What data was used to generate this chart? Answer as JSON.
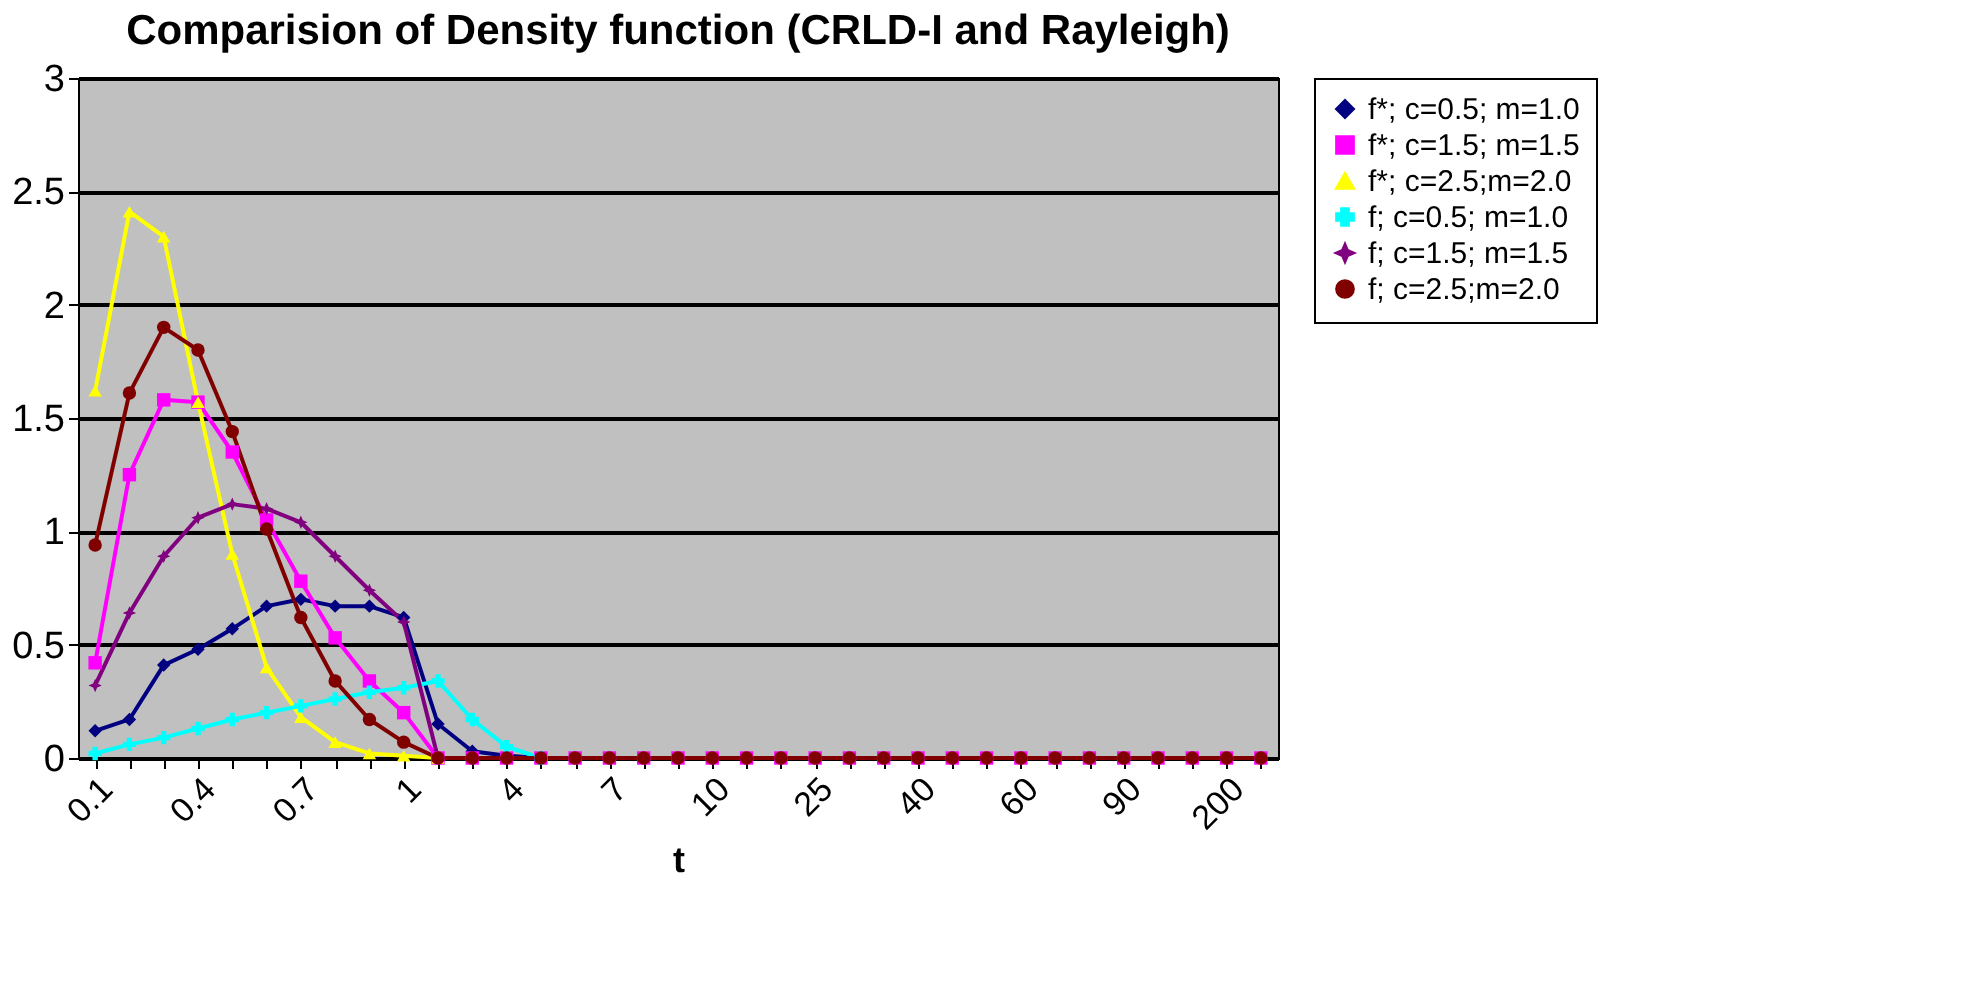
{
  "chart_data": {
    "type": "line",
    "title": "Comparision of Density function (CRLD-I and Rayleigh)",
    "xlabel": "t",
    "categories": [
      "0.1",
      null,
      null,
      "0.4",
      null,
      null,
      "0.7",
      null,
      null,
      "1",
      null,
      null,
      "4",
      null,
      null,
      "7",
      null,
      null,
      "10",
      null,
      null,
      "25",
      null,
      null,
      "40",
      null,
      null,
      "60",
      null,
      null,
      "90",
      null,
      null,
      "200",
      null
    ],
    "series": [
      {
        "name": "f*; c=0.5; m=1.0",
        "color": "#000080",
        "marker": "diamond",
        "values": [
          0.12,
          0.17,
          0.41,
          0.48,
          0.57,
          0.67,
          0.7,
          0.67,
          0.67,
          0.62,
          0.15,
          0.03,
          0.01,
          0,
          null,
          null,
          null,
          null,
          null,
          null,
          null,
          null,
          null,
          null,
          null,
          null,
          null,
          null,
          null,
          null,
          null,
          null,
          null,
          null,
          null
        ]
      },
      {
        "name": "f*; c=1.5; m=1.5",
        "color": "#ff00ff",
        "marker": "square",
        "values": [
          0.42,
          1.25,
          1.58,
          1.57,
          1.35,
          1.05,
          0.78,
          0.53,
          0.34,
          0.2,
          0,
          0,
          0,
          0,
          0,
          0,
          0,
          0,
          0,
          0,
          0,
          0,
          0,
          0,
          0,
          0,
          0,
          0,
          0,
          0,
          0,
          0,
          0,
          0,
          0
        ]
      },
      {
        "name": "f*; c=2.5;m=2.0",
        "color": "#ffff00",
        "marker": "triangle",
        "values": [
          1.62,
          2.41,
          2.3,
          1.57,
          0.9,
          0.4,
          0.18,
          0.07,
          0.02,
          0.01,
          0,
          null,
          null,
          null,
          null,
          null,
          null,
          null,
          null,
          null,
          null,
          null,
          null,
          null,
          null,
          null,
          null,
          null,
          null,
          null,
          null,
          null,
          null,
          null,
          null
        ]
      },
      {
        "name": "f; c=0.5; m=1.0",
        "color": "#00ffff",
        "marker": "cross",
        "values": [
          0.02,
          0.06,
          0.09,
          0.13,
          0.17,
          0.2,
          0.23,
          0.26,
          0.29,
          0.31,
          0.34,
          0.17,
          0.05,
          0,
          null,
          null,
          null,
          null,
          null,
          null,
          null,
          null,
          null,
          null,
          null,
          null,
          null,
          null,
          null,
          null,
          null,
          null,
          null,
          null,
          null
        ]
      },
      {
        "name": "f; c=1.5; m=1.5",
        "color": "#800080",
        "marker": "star",
        "values": [
          0.32,
          0.64,
          0.89,
          1.06,
          1.12,
          1.1,
          1.04,
          0.89,
          0.74,
          0.6,
          0,
          0,
          0,
          null,
          null,
          null,
          null,
          null,
          null,
          null,
          null,
          null,
          null,
          null,
          null,
          null,
          null,
          null,
          null,
          null,
          null,
          null,
          null,
          null,
          null
        ]
      },
      {
        "name": "f; c=2.5;m=2.0",
        "color": "#800000",
        "marker": "circle",
        "values": [
          0.94,
          1.61,
          1.9,
          1.8,
          1.44,
          1.01,
          0.62,
          0.34,
          0.17,
          0.07,
          0,
          0,
          0,
          0,
          0,
          0,
          0,
          0,
          0,
          0,
          0,
          0,
          0,
          0,
          0,
          0,
          0,
          0,
          0,
          0,
          0,
          0,
          0,
          0,
          0
        ]
      }
    ],
    "ylim": [
      0,
      3
    ],
    "yticks": [
      0,
      0.5,
      1,
      1.5,
      2,
      2.5,
      3
    ],
    "grid": "y",
    "legend": "right",
    "line_style": "solid"
  }
}
